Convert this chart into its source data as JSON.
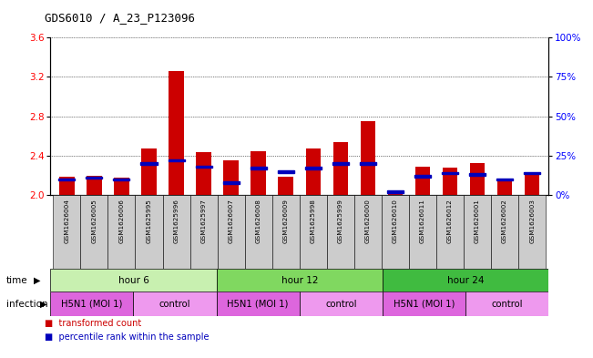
{
  "title": "GDS6010 / A_23_P123096",
  "samples": [
    "GSM1626004",
    "GSM1626005",
    "GSM1626006",
    "GSM1625995",
    "GSM1625996",
    "GSM1625997",
    "GSM1626007",
    "GSM1626008",
    "GSM1626009",
    "GSM1625998",
    "GSM1625999",
    "GSM1626000",
    "GSM1626010",
    "GSM1626011",
    "GSM1626012",
    "GSM1626001",
    "GSM1626002",
    "GSM1626003"
  ],
  "red_values": [
    2.19,
    2.2,
    2.18,
    2.47,
    3.26,
    2.44,
    2.35,
    2.45,
    2.19,
    2.47,
    2.54,
    2.75,
    2.05,
    2.29,
    2.28,
    2.33,
    2.17,
    2.21
  ],
  "blue_pct": [
    10,
    11,
    10,
    20,
    22,
    18,
    8,
    17,
    15,
    17,
    20,
    20,
    2,
    12,
    14,
    13,
    10,
    14
  ],
  "ylim_left": [
    2.0,
    3.6
  ],
  "ylim_right": [
    0,
    100
  ],
  "yticks_left": [
    2.0,
    2.4,
    2.8,
    3.2,
    3.6
  ],
  "yticks_right": [
    0,
    25,
    50,
    75,
    100
  ],
  "ytick_right_labels": [
    "0%",
    "25%",
    "50%",
    "75%",
    "100%"
  ],
  "bar_color": "#cc0000",
  "blue_color": "#0000bb",
  "bar_width": 0.55,
  "grid_color": "#000000",
  "time_groups": [
    {
      "label": "hour 6",
      "start": 0,
      "end": 6,
      "color": "#c8f0b0"
    },
    {
      "label": "hour 12",
      "start": 6,
      "end": 12,
      "color": "#80d860"
    },
    {
      "label": "hour 24",
      "start": 12,
      "end": 18,
      "color": "#40bb40"
    }
  ],
  "infection_groups": [
    {
      "label": "H5N1 (MOI 1)",
      "start": 0,
      "end": 3,
      "color": "#dd66dd"
    },
    {
      "label": "control",
      "start": 3,
      "end": 6,
      "color": "#ee99ee"
    },
    {
      "label": "H5N1 (MOI 1)",
      "start": 6,
      "end": 9,
      "color": "#dd66dd"
    },
    {
      "label": "control",
      "start": 9,
      "end": 12,
      "color": "#ee99ee"
    },
    {
      "label": "H5N1 (MOI 1)",
      "start": 12,
      "end": 15,
      "color": "#dd66dd"
    },
    {
      "label": "control",
      "start": 15,
      "end": 18,
      "color": "#ee99ee"
    }
  ],
  "background_color": "#ffffff",
  "xaxis_bg": "#cccccc"
}
